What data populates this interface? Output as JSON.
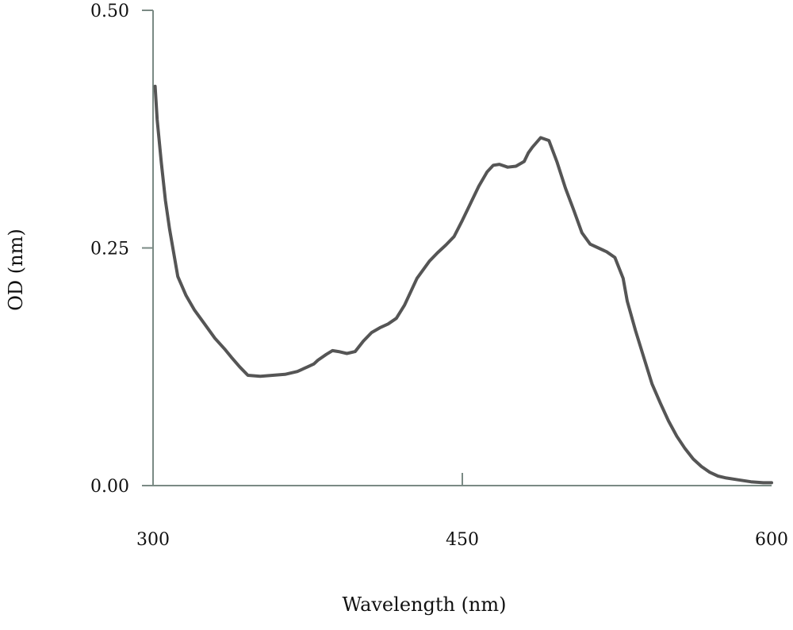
{
  "chart_data": {
    "type": "line",
    "xlabel": "Wavelength (nm)",
    "ylabel": "OD (nm)",
    "xlim": [
      300,
      600
    ],
    "ylim": [
      0,
      0.5
    ],
    "x_ticks": [
      "300",
      "450",
      "600"
    ],
    "y_ticks": [
      "0.00",
      "0.25",
      "0.50"
    ],
    "grid": false,
    "series": [
      {
        "color": "#555555",
        "x": [
          301,
          302,
          304,
          306,
          308,
          310,
          312,
          316,
          320,
          325,
          330,
          335,
          338,
          342,
          346,
          352,
          358,
          364,
          370,
          375,
          378,
          380,
          384,
          387,
          390,
          394,
          398,
          402,
          406,
          410,
          414,
          418,
          422,
          428,
          434,
          438,
          442,
          446,
          450,
          454,
          458,
          462,
          465,
          468,
          472,
          476,
          480,
          482,
          484,
          488,
          492,
          496,
          500,
          504,
          508,
          512,
          516,
          520,
          524,
          528,
          530,
          534,
          538,
          542,
          546,
          550,
          554,
          558,
          562,
          566,
          570,
          574,
          578,
          584,
          590,
          596,
          600
        ],
        "y": [
          0.42,
          0.385,
          0.34,
          0.3,
          0.27,
          0.245,
          0.22,
          0.2,
          0.185,
          0.17,
          0.155,
          0.143,
          0.135,
          0.125,
          0.116,
          0.115,
          0.116,
          0.117,
          0.12,
          0.125,
          0.128,
          0.132,
          0.138,
          0.142,
          0.141,
          0.139,
          0.141,
          0.152,
          0.161,
          0.166,
          0.17,
          0.176,
          0.19,
          0.218,
          0.236,
          0.245,
          0.253,
          0.262,
          0.279,
          0.297,
          0.315,
          0.33,
          0.337,
          0.338,
          0.335,
          0.336,
          0.341,
          0.35,
          0.356,
          0.366,
          0.363,
          0.34,
          0.313,
          0.29,
          0.266,
          0.254,
          0.25,
          0.246,
          0.24,
          0.218,
          0.194,
          0.163,
          0.135,
          0.107,
          0.087,
          0.068,
          0.052,
          0.039,
          0.028,
          0.02,
          0.014,
          0.01,
          0.008,
          0.006,
          0.004,
          0.003,
          0.003
        ]
      }
    ]
  }
}
